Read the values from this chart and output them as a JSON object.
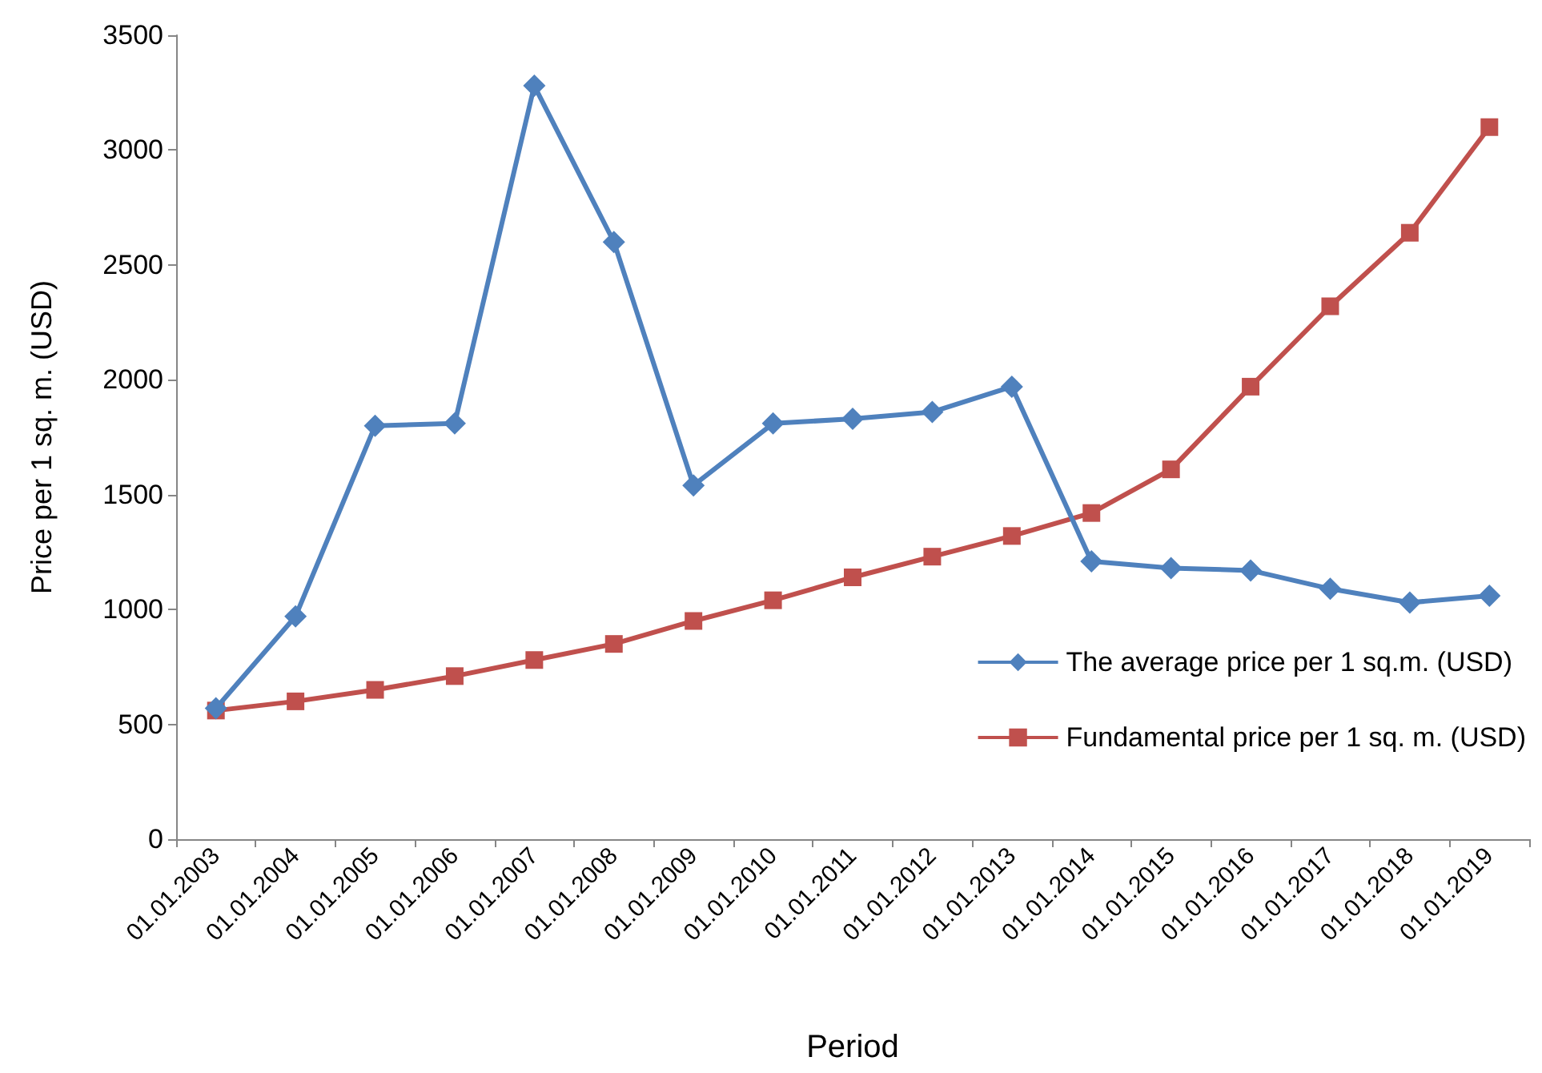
{
  "chart_data": {
    "type": "line",
    "xlabel": "Period",
    "ylabel": "Price per 1 sq. m. (USD)",
    "categories": [
      "01.01.2003",
      "01.01.2004",
      "01.01.2005",
      "01.01.2006",
      "01.01.2007",
      "01.01.2008",
      "01.01.2009",
      "01.01.2010",
      "01.01.2011",
      "01.01.2012",
      "01.01.2013",
      "01.01.2014",
      "01.01.2015",
      "01.01.2016",
      "01.01.2017",
      "01.01.2018",
      "01.01.2019"
    ],
    "series": [
      {
        "name": "The average price per 1 sq.m. (USD)",
        "color": "#4f81bd",
        "marker": "diamond",
        "values": [
          570,
          970,
          1800,
          1810,
          3280,
          2600,
          1540,
          1810,
          1830,
          1860,
          1970,
          1210,
          1180,
          1170,
          1090,
          1030,
          1060
        ]
      },
      {
        "name": "Fundamental price per 1 sq. m. (USD)",
        "color": "#c0504d",
        "marker": "square",
        "values": [
          560,
          600,
          650,
          710,
          780,
          850,
          950,
          1040,
          1140,
          1230,
          1320,
          1420,
          1610,
          1970,
          2320,
          2640,
          3100
        ]
      }
    ],
    "ylim": [
      0,
      3500
    ],
    "yticks": [
      0,
      500,
      1000,
      1500,
      2000,
      2500,
      3000,
      3500
    ],
    "grid": false,
    "legend": "bottom right",
    "line_style": "solid"
  }
}
